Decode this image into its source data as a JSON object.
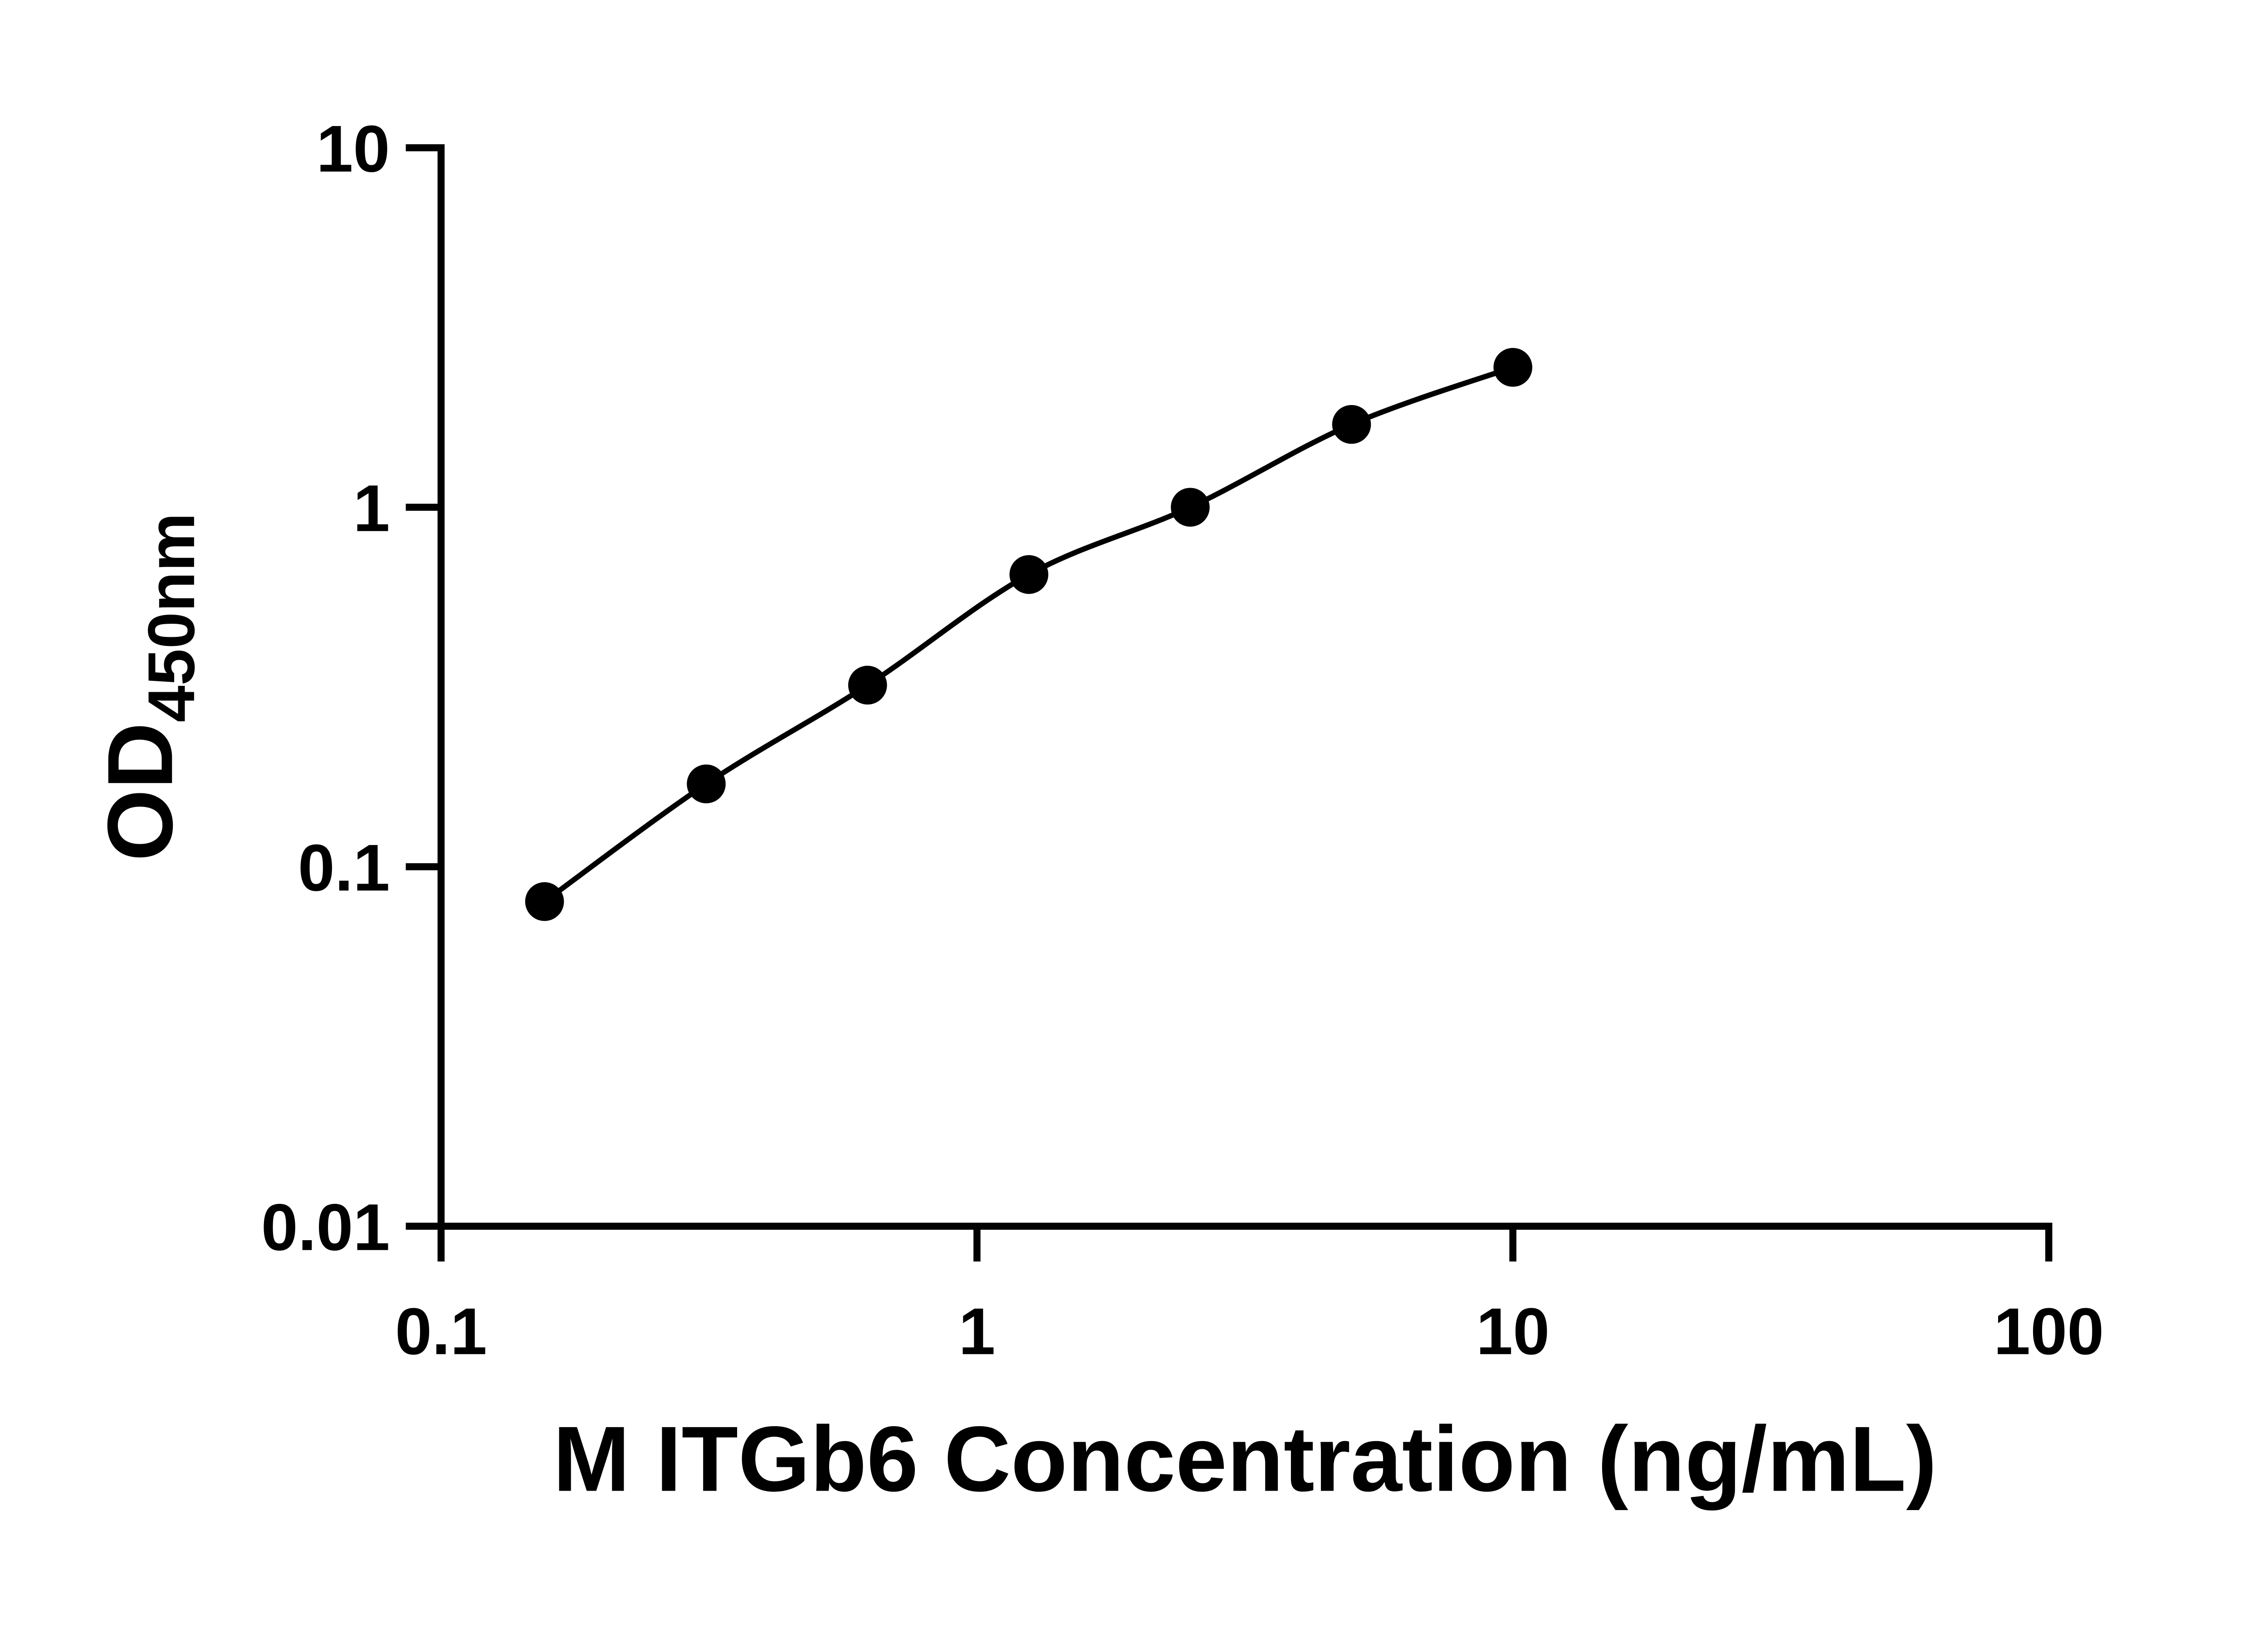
{
  "chart_data": {
    "type": "line",
    "title": "",
    "x": [
      0.156,
      0.3125,
      0.625,
      1.25,
      2.5,
      5,
      10
    ],
    "y": [
      0.08,
      0.17,
      0.32,
      0.65,
      1.0,
      1.7,
      2.45
    ],
    "xlabel": "M ITGb6 Concentration (ng/mL)",
    "ylabel_main": "OD",
    "ylabel_sub": "450nm",
    "x_scale": "log10",
    "y_scale": "log10",
    "xlim": [
      0.1,
      100
    ],
    "ylim": [
      0.01,
      10
    ],
    "x_tick_labels": [
      "0.1",
      "1",
      "10",
      "100"
    ],
    "y_tick_labels": [
      "0.01",
      "0.1",
      "1",
      "10"
    ],
    "grid": false,
    "legend": "none",
    "marker_shape": "circle",
    "marker_color": "#000000",
    "line_color": "#000000",
    "axis_color": "#000000",
    "background_color": "#ffffff"
  }
}
